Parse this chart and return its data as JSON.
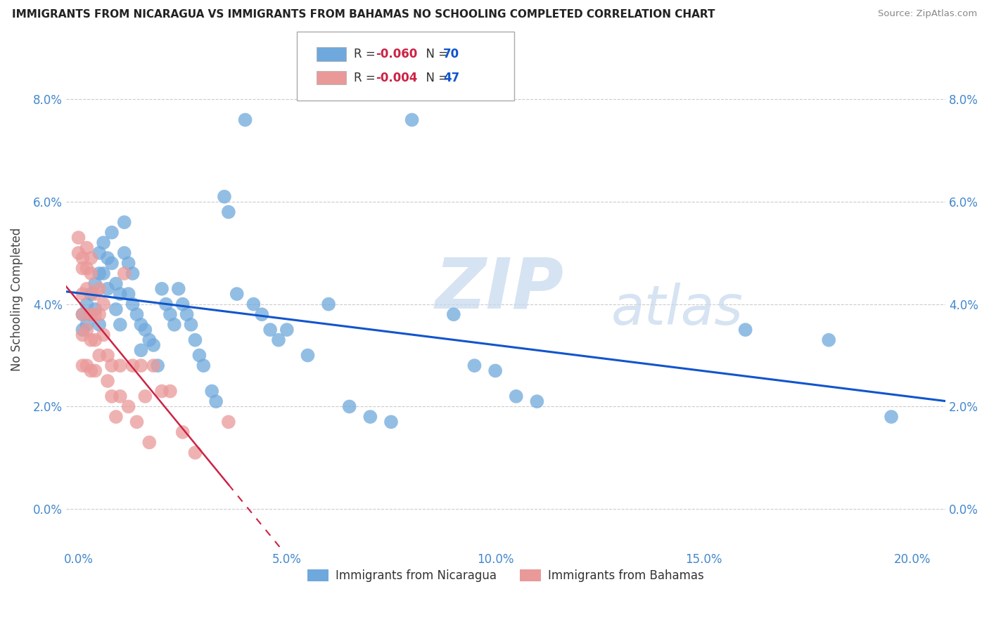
{
  "title": "IMMIGRANTS FROM NICARAGUA VS IMMIGRANTS FROM BAHAMAS NO SCHOOLING COMPLETED CORRELATION CHART",
  "source": "Source: ZipAtlas.com",
  "xlabel_ticks": [
    "0.0%",
    "5.0%",
    "10.0%",
    "15.0%",
    "20.0%"
  ],
  "xlabel_vals": [
    0.0,
    0.05,
    0.1,
    0.15,
    0.2
  ],
  "ylabel_ticks": [
    "0.0%",
    "2.0%",
    "4.0%",
    "6.0%",
    "8.0%"
  ],
  "ylabel_vals": [
    0.0,
    0.02,
    0.04,
    0.06,
    0.08
  ],
  "xlim": [
    -0.003,
    0.208
  ],
  "ylim": [
    -0.008,
    0.09
  ],
  "legend1_r": "-0.060",
  "legend1_n": "70",
  "legend2_r": "-0.004",
  "legend2_n": "47",
  "color_nicaragua": "#6fa8dc",
  "color_bahamas": "#ea9999",
  "color_line_nicaragua": "#1155cc",
  "color_line_bahamas": "#cc2244",
  "watermark_zip": "ZIP",
  "watermark_atlas": "atlas",
  "nicaragua_x": [
    0.001,
    0.001,
    0.002,
    0.002,
    0.003,
    0.003,
    0.004,
    0.004,
    0.005,
    0.005,
    0.005,
    0.006,
    0.006,
    0.007,
    0.007,
    0.008,
    0.008,
    0.009,
    0.009,
    0.01,
    0.01,
    0.011,
    0.011,
    0.012,
    0.012,
    0.013,
    0.013,
    0.014,
    0.015,
    0.015,
    0.016,
    0.017,
    0.018,
    0.019,
    0.02,
    0.021,
    0.022,
    0.023,
    0.024,
    0.025,
    0.026,
    0.027,
    0.028,
    0.029,
    0.03,
    0.032,
    0.033,
    0.035,
    0.036,
    0.038,
    0.04,
    0.042,
    0.044,
    0.046,
    0.048,
    0.05,
    0.055,
    0.06,
    0.065,
    0.07,
    0.075,
    0.08,
    0.09,
    0.095,
    0.1,
    0.105,
    0.11,
    0.16,
    0.18,
    0.195
  ],
  "nicaragua_y": [
    0.038,
    0.035,
    0.04,
    0.036,
    0.042,
    0.038,
    0.044,
    0.039,
    0.05,
    0.046,
    0.036,
    0.052,
    0.046,
    0.049,
    0.043,
    0.054,
    0.048,
    0.044,
    0.039,
    0.042,
    0.036,
    0.056,
    0.05,
    0.048,
    0.042,
    0.046,
    0.04,
    0.038,
    0.036,
    0.031,
    0.035,
    0.033,
    0.032,
    0.028,
    0.043,
    0.04,
    0.038,
    0.036,
    0.043,
    0.04,
    0.038,
    0.036,
    0.033,
    0.03,
    0.028,
    0.023,
    0.021,
    0.061,
    0.058,
    0.042,
    0.076,
    0.04,
    0.038,
    0.035,
    0.033,
    0.035,
    0.03,
    0.04,
    0.02,
    0.018,
    0.017,
    0.076,
    0.038,
    0.028,
    0.027,
    0.022,
    0.021,
    0.035,
    0.033,
    0.018
  ],
  "bahamas_x": [
    0.0,
    0.0,
    0.001,
    0.001,
    0.001,
    0.001,
    0.001,
    0.001,
    0.002,
    0.002,
    0.002,
    0.002,
    0.002,
    0.003,
    0.003,
    0.003,
    0.003,
    0.003,
    0.004,
    0.004,
    0.004,
    0.004,
    0.005,
    0.005,
    0.005,
    0.006,
    0.006,
    0.007,
    0.007,
    0.008,
    0.008,
    0.009,
    0.01,
    0.01,
    0.011,
    0.012,
    0.013,
    0.014,
    0.015,
    0.016,
    0.017,
    0.018,
    0.02,
    0.022,
    0.025,
    0.028,
    0.036
  ],
  "bahamas_y": [
    0.053,
    0.05,
    0.049,
    0.047,
    0.042,
    0.038,
    0.034,
    0.028,
    0.051,
    0.047,
    0.043,
    0.035,
    0.028,
    0.049,
    0.046,
    0.038,
    0.033,
    0.027,
    0.042,
    0.038,
    0.033,
    0.027,
    0.043,
    0.038,
    0.03,
    0.04,
    0.034,
    0.03,
    0.025,
    0.028,
    0.022,
    0.018,
    0.028,
    0.022,
    0.046,
    0.02,
    0.028,
    0.017,
    0.028,
    0.022,
    0.013,
    0.028,
    0.023,
    0.023,
    0.015,
    0.011,
    0.017
  ]
}
